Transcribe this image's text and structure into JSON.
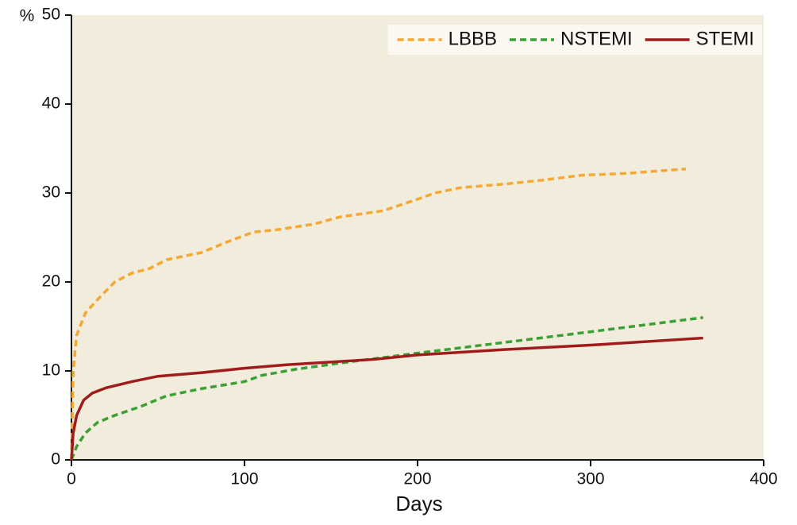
{
  "chart_data": {
    "type": "line",
    "y_label": "%",
    "x_label": "Days",
    "xlim": [
      0,
      400
    ],
    "xticks": [
      0,
      100,
      200,
      300,
      400
    ],
    "ylim": [
      0,
      50
    ],
    "yticks": [
      0,
      10,
      20,
      30,
      40,
      50
    ],
    "legend": "upper right",
    "background": "#f1ecdb",
    "series": [
      {
        "name": "LBBB",
        "color": "#f5a833",
        "style": "dashed",
        "x": [
          0,
          1,
          3,
          8,
          15,
          25,
          35,
          45,
          55,
          75,
          90,
          105,
          120,
          140,
          155,
          180,
          200,
          210,
          225,
          250,
          270,
          295,
          320,
          355
        ],
        "values": [
          0,
          10,
          14,
          16.5,
          18,
          20,
          21,
          21.5,
          22.5,
          23.3,
          24.5,
          25.6,
          25.9,
          26.5,
          27.3,
          28,
          29.3,
          30,
          30.6,
          31,
          31.4,
          32,
          32.2,
          32.7
        ]
      },
      {
        "name": "NSTEMI",
        "color": "#3aa035",
        "style": "dashed",
        "x": [
          0,
          3,
          8,
          15,
          25,
          40,
          55,
          75,
          100,
          110,
          130,
          160,
          200,
          250,
          300,
          365
        ],
        "values": [
          0,
          1.5,
          3,
          4.2,
          5,
          6,
          7.2,
          8,
          8.8,
          9.5,
          10.2,
          11,
          12,
          13.2,
          14.4,
          16
        ]
      },
      {
        "name": "STEMI",
        "color": "#a01c1c",
        "style": "solid",
        "x": [
          0,
          1,
          3,
          7,
          12,
          20,
          35,
          50,
          75,
          100,
          125,
          175,
          200,
          250,
          300,
          365
        ],
        "values": [
          0,
          3,
          5,
          6.7,
          7.5,
          8.1,
          8.8,
          9.4,
          9.8,
          10.3,
          10.7,
          11.3,
          11.8,
          12.4,
          12.9,
          13.7
        ]
      }
    ]
  }
}
